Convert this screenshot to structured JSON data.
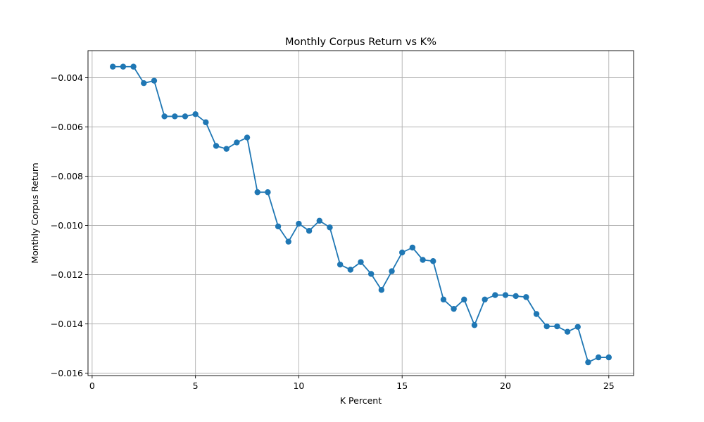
{
  "chart_data": {
    "type": "line",
    "title": "Monthly Corpus Return vs K%",
    "xlabel": "K Percent",
    "ylabel": "Monthly Corpus Return",
    "xlim": [
      -0.2,
      26.2
    ],
    "ylim": [
      -0.0161,
      -0.0029
    ],
    "xticks": [
      0,
      5,
      10,
      15,
      20,
      25
    ],
    "xtick_labels": [
      "0",
      "5",
      "10",
      "15",
      "20",
      "25"
    ],
    "yticks": [
      -0.016,
      -0.014,
      -0.012,
      -0.01,
      -0.008,
      -0.006,
      -0.004
    ],
    "ytick_labels": [
      "−0.016",
      "−0.014",
      "−0.012",
      "−0.010",
      "−0.008",
      "−0.006",
      "−0.004"
    ],
    "grid": true,
    "line_color": "#1f77b4",
    "marker": "circle",
    "series": [
      {
        "x": [
          1,
          1.5,
          2,
          2.5,
          3,
          3.5,
          4,
          4.5,
          5,
          5.5,
          6,
          6.5,
          7,
          7.5,
          8,
          8.5,
          9,
          9.5,
          10,
          10.5,
          11,
          11.5,
          12,
          12.5,
          13,
          13.5,
          14,
          14.5,
          15,
          15.5,
          16,
          16.5,
          17,
          17.5,
          18,
          18.5,
          19,
          19.5,
          20,
          20.5,
          21,
          21.5,
          22,
          22.5,
          23,
          23.5,
          24,
          24.5,
          25
        ],
        "y": [
          -0.00355,
          -0.00355,
          -0.00355,
          -0.00422,
          -0.00412,
          -0.00557,
          -0.00557,
          -0.00557,
          -0.00548,
          -0.00581,
          -0.00677,
          -0.00689,
          -0.00663,
          -0.00643,
          -0.00865,
          -0.00865,
          -0.01004,
          -0.01066,
          -0.00993,
          -0.01022,
          -0.00981,
          -0.01008,
          -0.01159,
          -0.0118,
          -0.01149,
          -0.01197,
          -0.01262,
          -0.01186,
          -0.0111,
          -0.0109,
          -0.0114,
          -0.01145,
          -0.01301,
          -0.01339,
          -0.01301,
          -0.01405,
          -0.01301,
          -0.01283,
          -0.01283,
          -0.01287,
          -0.01291,
          -0.0136,
          -0.0141,
          -0.0141,
          -0.01432,
          -0.01412,
          -0.01556,
          -0.01536,
          -0.01536
        ]
      }
    ]
  }
}
